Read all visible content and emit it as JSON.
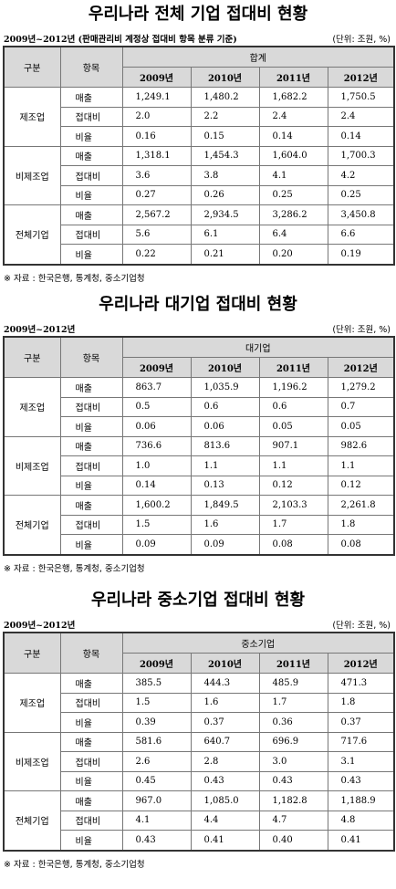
{
  "sections": [
    {
      "title": "우리나라 전체 기업 접대비 현황",
      "period": "2009년~2012년",
      "basis": "(판매관리비 계정상 접대비 항목 분류 기준)",
      "unit": "(단위: 조원, %)",
      "table": {
        "headers": {
          "category": "구분",
          "item": "항목",
          "group": "합계",
          "years": [
            "2009년",
            "2010년",
            "2011년",
            "2012년"
          ]
        },
        "groups": [
          {
            "name": "제조업",
            "rows": [
              {
                "item": "매출",
                "values": [
                  "1,249.1",
                  "1,480.2",
                  "1,682.2",
                  "1,750.5"
                ]
              },
              {
                "item": "접대비",
                "values": [
                  "2.0",
                  "2.2",
                  "2.4",
                  "2.4"
                ]
              },
              {
                "item": "비율",
                "values": [
                  "0.16",
                  "0.15",
                  "0.14",
                  "0.14"
                ]
              }
            ]
          },
          {
            "name": "비제조업",
            "rows": [
              {
                "item": "매출",
                "values": [
                  "1,318.1",
                  "1,454.3",
                  "1,604.0",
                  "1,700.3"
                ]
              },
              {
                "item": "접대비",
                "values": [
                  "3.6",
                  "3.8",
                  "4.1",
                  "4.2"
                ]
              },
              {
                "item": "비율",
                "values": [
                  "0.27",
                  "0.26",
                  "0.25",
                  "0.25"
                ]
              }
            ]
          },
          {
            "name": "전체기업",
            "rows": [
              {
                "item": "매출",
                "values": [
                  "2,567.2",
                  "2,934.5",
                  "3,286.2",
                  "3,450.8"
                ]
              },
              {
                "item": "접대비",
                "values": [
                  "5.6",
                  "6.1",
                  "6.4",
                  "6.6"
                ]
              },
              {
                "item": "비율",
                "values": [
                  "0.22",
                  "0.21",
                  "0.20",
                  "0.19"
                ]
              }
            ]
          }
        ]
      },
      "source": "※ 자료 : 한국은행, 통계청, 중소기업청"
    },
    {
      "title": "우리나라 대기업 접대비 현황",
      "period": "2009년~2012년",
      "unit": "(단위: 조원, %)",
      "table": {
        "headers": {
          "category": "구분",
          "item": "항목",
          "group": "대기업",
          "years": [
            "2009년",
            "2010년",
            "2011년",
            "2012년"
          ]
        },
        "groups": [
          {
            "name": "제조업",
            "rows": [
              {
                "item": "매출",
                "values": [
                  "863.7",
                  "1,035.9",
                  "1,196.2",
                  "1,279.2"
                ]
              },
              {
                "item": "접대비",
                "values": [
                  "0.5",
                  "0.6",
                  "0.6",
                  "0.7"
                ]
              },
              {
                "item": "비율",
                "values": [
                  "0.06",
                  "0.06",
                  "0.05",
                  "0.05"
                ]
              }
            ]
          },
          {
            "name": "비제조업",
            "rows": [
              {
                "item": "매출",
                "values": [
                  "736.6",
                  "813.6",
                  "907.1",
                  "982.6"
                ]
              },
              {
                "item": "접대비",
                "values": [
                  "1.0",
                  "1.1",
                  "1.1",
                  "1.1"
                ]
              },
              {
                "item": "비율",
                "values": [
                  "0.14",
                  "0.13",
                  "0.12",
                  "0.12"
                ]
              }
            ]
          },
          {
            "name": "전체기업",
            "rows": [
              {
                "item": "매출",
                "values": [
                  "1,600.2",
                  "1,849.5",
                  "2,103.3",
                  "2,261.8"
                ]
              },
              {
                "item": "접대비",
                "values": [
                  "1.5",
                  "1.6",
                  "1.7",
                  "1.8"
                ]
              },
              {
                "item": "비율",
                "values": [
                  "0.09",
                  "0.09",
                  "0.08",
                  "0.08"
                ]
              }
            ]
          }
        ]
      },
      "source": "※ 자료 : 한국은행, 통계청, 중소기업청"
    },
    {
      "title": "우리나라 중소기업 접대비 현황",
      "period": "2009년~2012년",
      "unit": "(단위: 조원, %)",
      "table": {
        "headers": {
          "category": "구분",
          "item": "항목",
          "group": "중소기업",
          "years": [
            "2009년",
            "2010년",
            "2011년",
            "2012년"
          ]
        },
        "groups": [
          {
            "name": "제조업",
            "rows": [
              {
                "item": "매출",
                "values": [
                  "385.5",
                  "444.3",
                  "485.9",
                  "471.3"
                ]
              },
              {
                "item": "접대비",
                "values": [
                  "1.5",
                  "1.6",
                  "1.7",
                  "1.8"
                ]
              },
              {
                "item": "비율",
                "values": [
                  "0.39",
                  "0.37",
                  "0.36",
                  "0.37"
                ]
              }
            ]
          },
          {
            "name": "비제조업",
            "rows": [
              {
                "item": "매출",
                "values": [
                  "581.6",
                  "640.7",
                  "696.9",
                  "717.6"
                ]
              },
              {
                "item": "접대비",
                "values": [
                  "2.6",
                  "2.8",
                  "3.0",
                  "3.1"
                ]
              },
              {
                "item": "비율",
                "values": [
                  "0.45",
                  "0.43",
                  "0.43",
                  "0.43"
                ]
              }
            ]
          },
          {
            "name": "전체기업",
            "rows": [
              {
                "item": "매출",
                "values": [
                  "967.0",
                  "1,085.0",
                  "1,182.8",
                  "1,188.9"
                ]
              },
              {
                "item": "접대비",
                "values": [
                  "4.1",
                  "4.4",
                  "4.7",
                  "4.8"
                ]
              },
              {
                "item": "비율",
                "values": [
                  "0.43",
                  "0.41",
                  "0.40",
                  "0.41"
                ]
              }
            ]
          }
        ]
      },
      "source": "※ 자료 : 한국은행, 통계청, 중소기업청"
    }
  ]
}
